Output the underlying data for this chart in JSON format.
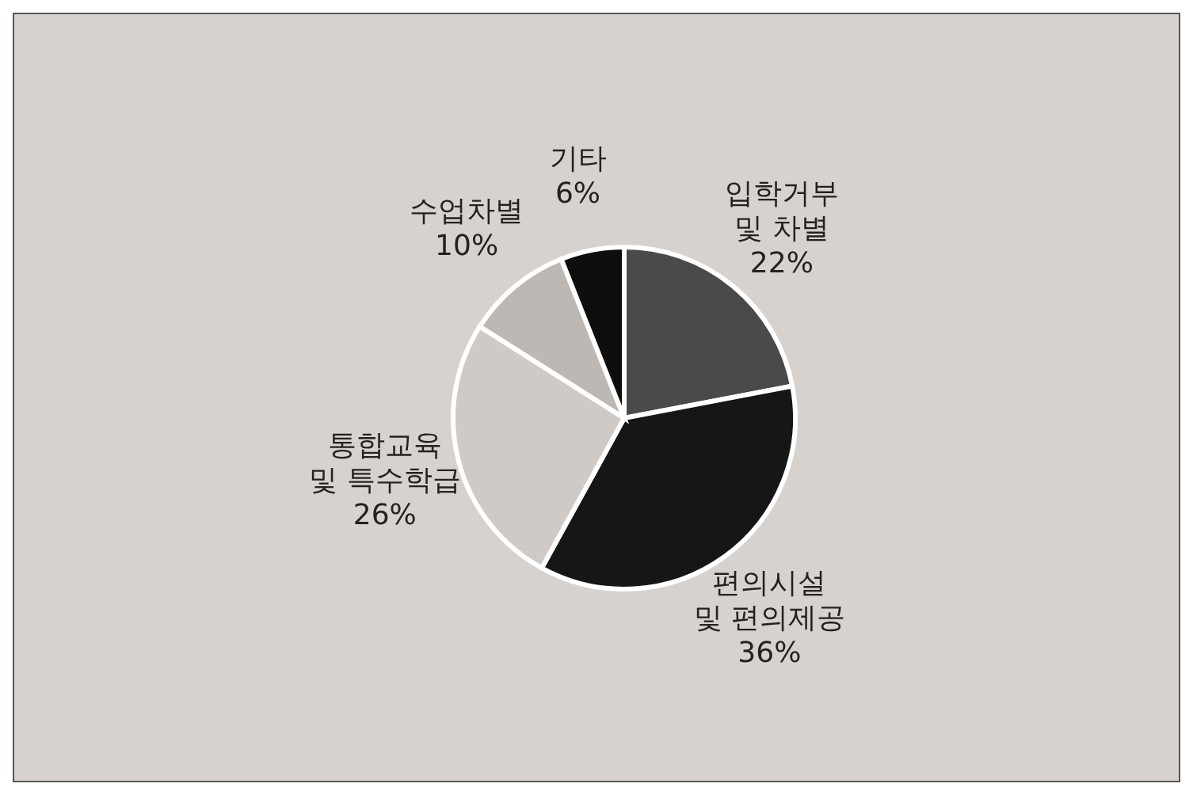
{
  "chart_data": {
    "type": "pie",
    "categories": [
      "입학거부\n및 차별",
      "편의시설\n및 편의제공",
      "통합교육\n및 특수학급",
      "수업차별",
      "기타"
    ],
    "values": [
      22,
      36,
      26,
      10,
      6
    ],
    "value_labels": [
      "22%",
      "36%",
      "26%",
      "10%",
      "6%"
    ],
    "colors": [
      "#4a4a4a",
      "#161616",
      "#cfcac6",
      "#bdb8b4",
      "#0e0e0e"
    ],
    "legend": false
  }
}
